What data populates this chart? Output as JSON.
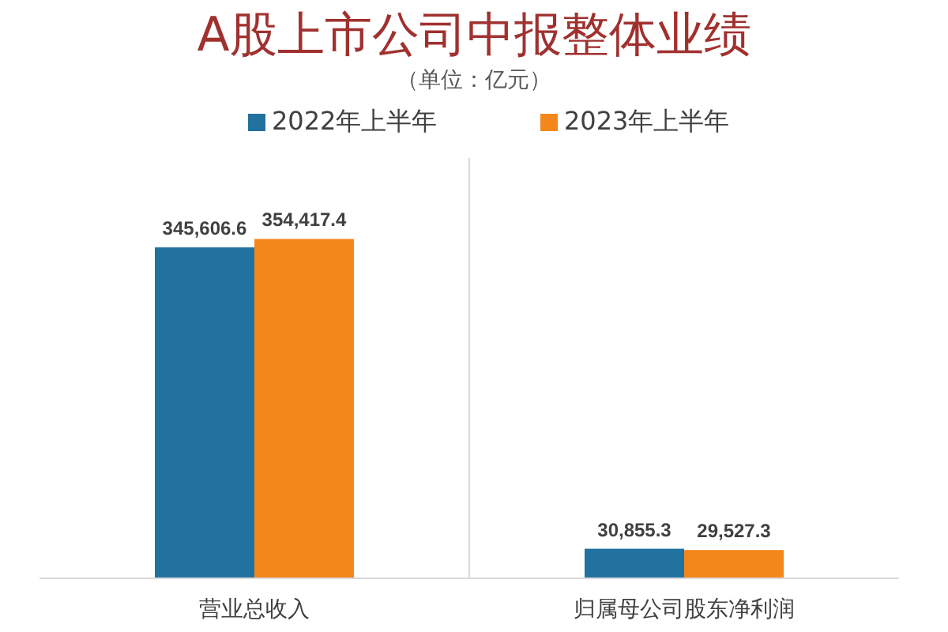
{
  "chart_data": {
    "type": "bar",
    "title": "A股上市公司中报整体业绩",
    "subtitle": "（单位：亿元）",
    "categories": [
      "营业总收入",
      "归属母公司股东净利润"
    ],
    "series": [
      {
        "name": "2022年上半年",
        "color": "#22729f",
        "values": [
          345606.6,
          30855.3
        ],
        "value_labels": [
          "345,606.6",
          "30,855.3"
        ]
      },
      {
        "name": "2023年上半年",
        "color": "#f3871c",
        "values": [
          354417.4,
          29527.3
        ],
        "value_labels": [
          "354,417.4",
          "29,527.3"
        ]
      }
    ],
    "legend": "top"
  }
}
